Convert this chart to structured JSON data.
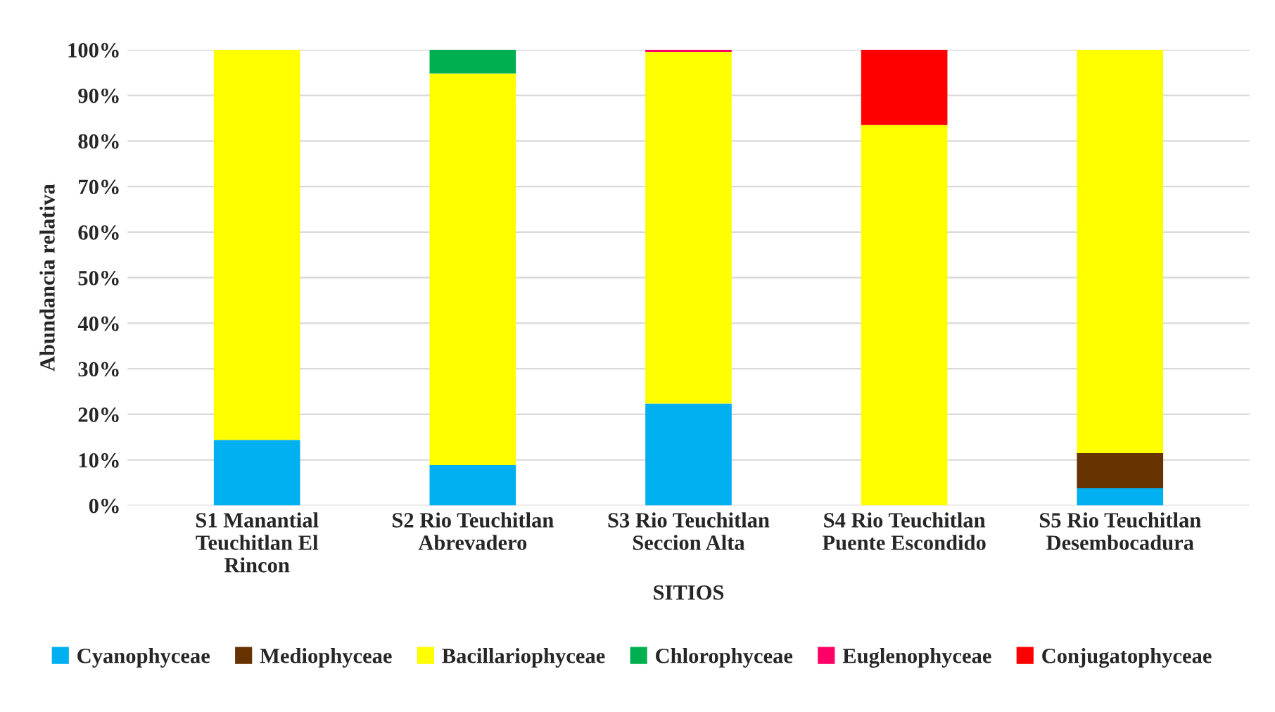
{
  "chart_data": {
    "type": "bar",
    "stacked": true,
    "xlabel": "SITIOS",
    "ylabel": "Abundancia relativa",
    "categories": [
      "S1 Manantial\nTeuchitlan El\nRincon",
      "S2 Rio Teuchitlan\nAbrevadero",
      "S3 Rio Teuchitlan\nSeccion Alta",
      "S4 Rio Teuchitlan\nPuente Escondido",
      "S5 Rio Teuchitlan\nDesembocadura"
    ],
    "series": [
      {
        "name": "Cyanophyceae",
        "color": "#00b0f0",
        "values": [
          14.4,
          8.9,
          22.4,
          0,
          3.8
        ]
      },
      {
        "name": "Mediophyceae",
        "color": "#663300",
        "values": [
          0,
          0,
          0,
          0,
          7.7
        ]
      },
      {
        "name": "Bacillariophyceae",
        "color": "#ffff00",
        "values": [
          85.6,
          85.9,
          77.1,
          83.5,
          88.5
        ]
      },
      {
        "name": "Chlorophyceae",
        "color": "#00b050",
        "values": [
          0,
          5.2,
          0,
          0,
          0
        ]
      },
      {
        "name": "Euglenophyceae",
        "color": "#ff0066",
        "values": [
          0,
          0,
          0.5,
          0,
          0
        ]
      },
      {
        "name": "Conjugatophyceae",
        "color": "#ff0000",
        "values": [
          0,
          0,
          0,
          16.5,
          0
        ]
      }
    ],
    "ylim": [
      0,
      100
    ],
    "yticks": [
      {
        "value": 0,
        "label": "0%"
      },
      {
        "value": 10,
        "label": "10%"
      },
      {
        "value": 20,
        "label": "20%"
      },
      {
        "value": 30,
        "label": "30%"
      },
      {
        "value": 40,
        "label": "40%"
      },
      {
        "value": 50,
        "label": "50%"
      },
      {
        "value": 60,
        "label": "60%"
      },
      {
        "value": 70,
        "label": "70%"
      },
      {
        "value": 80,
        "label": "80%"
      },
      {
        "value": 90,
        "label": "90%"
      },
      {
        "value": 100,
        "label": "100%"
      }
    ],
    "grid": "y",
    "legend": "bottom"
  }
}
